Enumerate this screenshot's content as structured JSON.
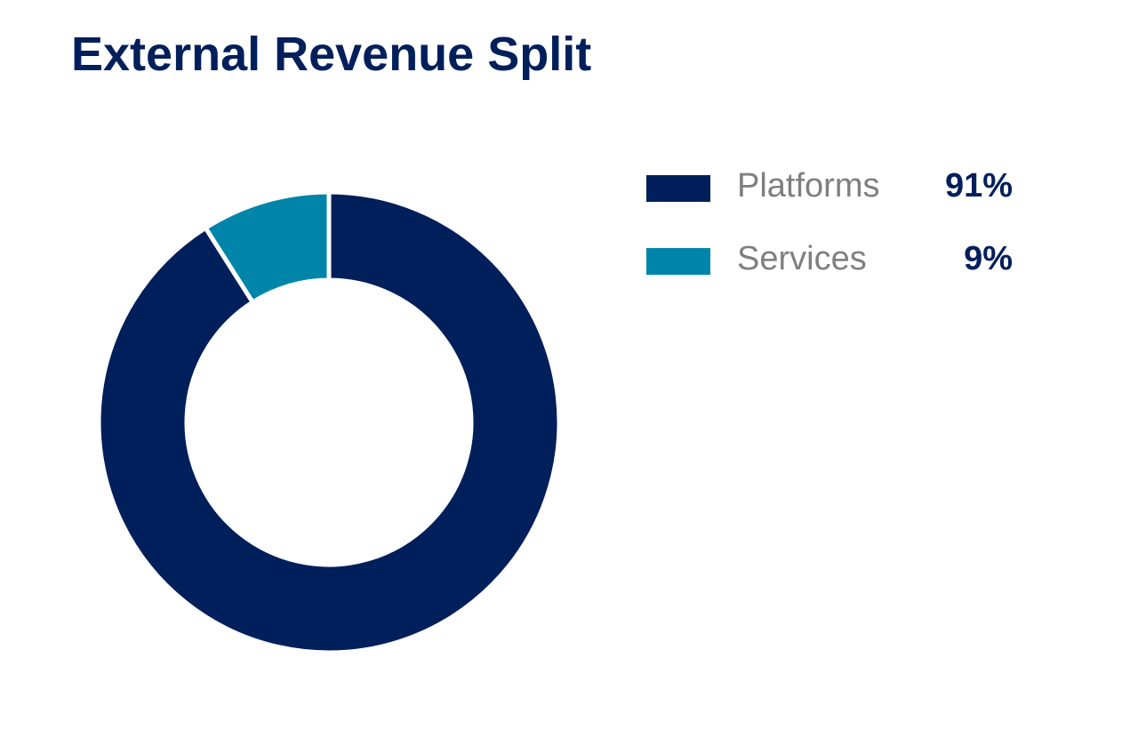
{
  "title": "External Revenue Split",
  "chart_data": {
    "type": "pie",
    "variant": "donut",
    "title": "External Revenue Split",
    "categories": [
      "Platforms",
      "Services"
    ],
    "values": [
      91,
      9
    ],
    "unit": "%",
    "colors": [
      "#001f5b",
      "#0085aa"
    ],
    "legend_position": "right",
    "legend": [
      {
        "label": "Platforms",
        "value": "91%",
        "color": "#001f5b"
      },
      {
        "label": "Services",
        "value": "9%",
        "color": "#0085aa"
      }
    ]
  }
}
